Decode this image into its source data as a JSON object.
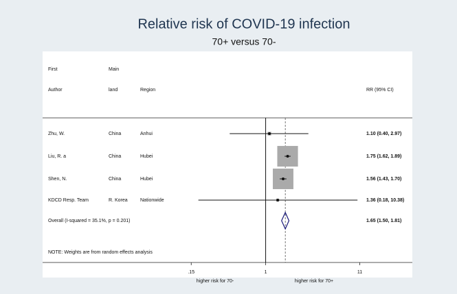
{
  "chart_data": {
    "type": "forest",
    "title": "Relative risk of COVID-19 infection",
    "subtitle": "70+ versus 70-",
    "headers": {
      "col1_top": "First",
      "col1": "Author",
      "col2_top": "Main",
      "col2": "land",
      "col3": "Region",
      "col4": "RR (95% CI)"
    },
    "authors": [
      "Zhu, W.",
      "Liu, R. a",
      "Shen, N.",
      "KDCD Resp. Team"
    ],
    "lands": [
      "China",
      "China",
      "China",
      "R. Korea"
    ],
    "regions": [
      "Anhui",
      "Hubei",
      "Hubei",
      "Nationwide"
    ],
    "values": [
      1.1,
      1.75,
      1.56,
      1.36
    ],
    "lower": [
      0.4,
      1.62,
      1.43,
      0.18
    ],
    "upper": [
      2.97,
      1.89,
      1.7,
      10.38
    ],
    "weights": [
      1.5,
      49,
      48.5,
      1
    ],
    "value_labels": [
      "1.10 (0.40, 2.97)",
      "1.75 (1.62, 1.89)",
      "1.56 (1.43, 1.70)",
      "1.36 (0.18, 10.38)"
    ],
    "overall": {
      "label": "Overall  (I-squared = 35.1%, p = 0.201)",
      "value": 1.65,
      "lower": 1.5,
      "upper": 1.81,
      "value_label": "1.65 (1.50, 1.81)"
    },
    "note": "NOTE: Weights are from random effects analysis",
    "xlim": [
      0.0034,
      42
    ],
    "xticks": [
      {
        "value": 0.15,
        "label": ".15"
      },
      1,
      11
    ],
    "log_x": true,
    "xlabel_left": "higher risk for 70-",
    "xlabel_right": "higher risk for 70+",
    "color": "#aaaaaa",
    "diamond_color": "#1a1a7a"
  }
}
